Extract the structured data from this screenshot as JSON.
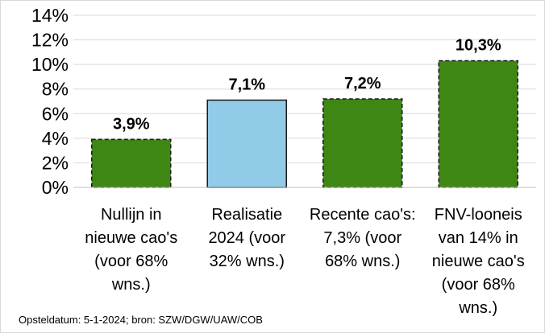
{
  "chart_data": {
    "type": "bar",
    "title": "",
    "xlabel": "",
    "ylabel": "",
    "ylim": [
      0,
      14
    ],
    "y_ticks": [
      "0%",
      "2%",
      "4%",
      "6%",
      "8%",
      "10%",
      "12%",
      "14%"
    ],
    "grid": "horizontal",
    "legend": "none",
    "categories": [
      [
        "Nullijn in",
        "nieuwe cao's",
        "(voor 68%",
        "wns.)"
      ],
      [
        "Realisatie",
        "2024 (voor",
        "32% wns.)"
      ],
      [
        "Recente cao's:",
        "7,3% (voor",
        "68% wns.)"
      ],
      [
        "FNV-looneis",
        "van 14% in",
        "nieuwe cao's",
        "(voor 68%",
        "wns.)"
      ]
    ],
    "values": [
      3.9,
      7.1,
      7.2,
      10.3
    ],
    "data_labels": [
      "3,9%",
      "7,1%",
      "7,2%",
      "10,3%"
    ],
    "bar_colors": [
      "#3e8714",
      "#92cbe8",
      "#3e8714",
      "#3e8714"
    ],
    "bar_dashed": [
      true,
      false,
      true,
      true
    ]
  },
  "source": "Opsteldatum: 5-1-2024; bron: SZW/DGW/UAW/COB"
}
